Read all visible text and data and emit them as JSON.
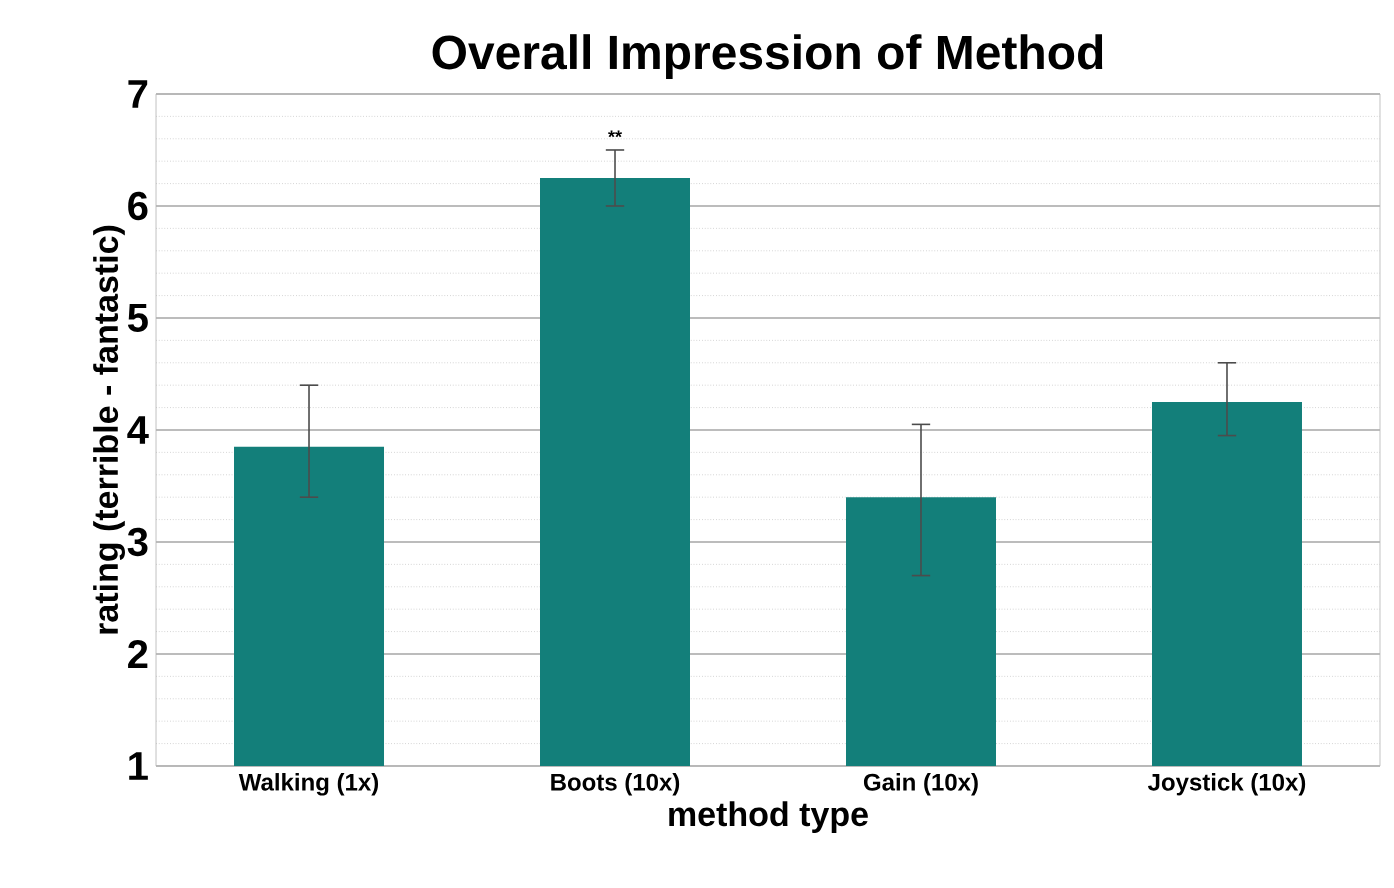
{
  "chart_data": {
    "type": "bar",
    "title": "Overall Impression of Method",
    "xlabel": "method type",
    "ylabel": "rating (terrible - fantastic)",
    "categories": [
      "Walking (1x)",
      "Boots (10x)",
      "Gain (10x)",
      "Joystick (10x)"
    ],
    "values": [
      3.85,
      6.25,
      3.4,
      4.25
    ],
    "errors": [
      [
        3.4,
        4.4
      ],
      [
        6.0,
        6.5
      ],
      [
        2.7,
        4.05
      ],
      [
        3.95,
        4.6
      ]
    ],
    "color": "#137f7a",
    "ylim": [
      1,
      7
    ],
    "yticks": [
      1,
      2,
      3,
      4,
      5,
      6,
      7
    ],
    "grid": "y",
    "annotations": [
      "**"
    ]
  }
}
